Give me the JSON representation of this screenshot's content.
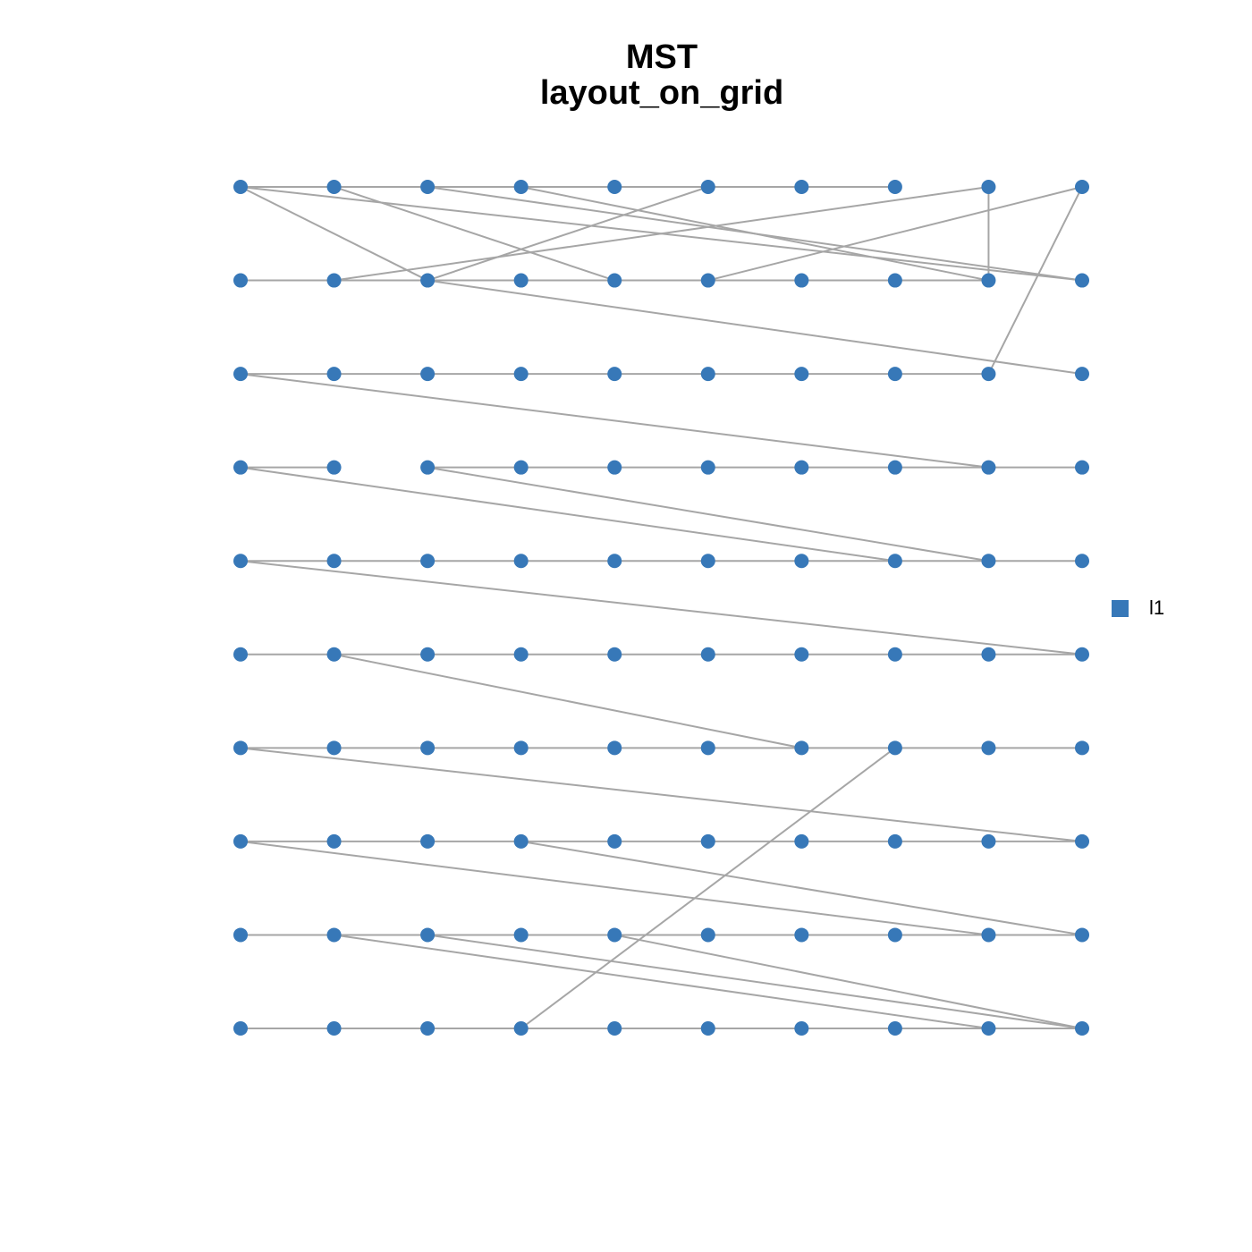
{
  "title": [
    "MST",
    "layout_on_grid"
  ],
  "legend": {
    "label": "l1",
    "color": "#3778b8"
  },
  "edge_color": "#a6a6a6",
  "grid": {
    "columns": 10,
    "rows": 10
  },
  "edges": [
    [
      0,
      1
    ],
    [
      1,
      2
    ],
    [
      2,
      3
    ],
    [
      3,
      4
    ],
    [
      4,
      5
    ],
    [
      5,
      6
    ],
    [
      6,
      7
    ],
    [
      10,
      11
    ],
    [
      11,
      12
    ],
    [
      12,
      13
    ],
    [
      13,
      14
    ],
    [
      14,
      15
    ],
    [
      15,
      16
    ],
    [
      16,
      17
    ],
    [
      17,
      18
    ],
    [
      20,
      21
    ],
    [
      21,
      22
    ],
    [
      22,
      23
    ],
    [
      23,
      24
    ],
    [
      24,
      25
    ],
    [
      25,
      26
    ],
    [
      26,
      27
    ],
    [
      27,
      28
    ],
    [
      30,
      31
    ],
    [
      32,
      33
    ],
    [
      33,
      34
    ],
    [
      34,
      35
    ],
    [
      35,
      36
    ],
    [
      36,
      37
    ],
    [
      37,
      38
    ],
    [
      38,
      39
    ],
    [
      40,
      41
    ],
    [
      41,
      42
    ],
    [
      42,
      43
    ],
    [
      43,
      44
    ],
    [
      44,
      45
    ],
    [
      45,
      46
    ],
    [
      46,
      47
    ],
    [
      47,
      48
    ],
    [
      48,
      49
    ],
    [
      50,
      51
    ],
    [
      51,
      52
    ],
    [
      52,
      53
    ],
    [
      53,
      54
    ],
    [
      54,
      55
    ],
    [
      55,
      56
    ],
    [
      56,
      57
    ],
    [
      57,
      58
    ],
    [
      58,
      59
    ],
    [
      60,
      61
    ],
    [
      61,
      62
    ],
    [
      62,
      63
    ],
    [
      63,
      64
    ],
    [
      64,
      65
    ],
    [
      65,
      66
    ],
    [
      66,
      67
    ],
    [
      67,
      68
    ],
    [
      68,
      69
    ],
    [
      70,
      71
    ],
    [
      71,
      72
    ],
    [
      72,
      73
    ],
    [
      73,
      74
    ],
    [
      74,
      75
    ],
    [
      75,
      76
    ],
    [
      76,
      77
    ],
    [
      77,
      78
    ],
    [
      78,
      79
    ],
    [
      80,
      81
    ],
    [
      81,
      82
    ],
    [
      82,
      83
    ],
    [
      83,
      84
    ],
    [
      84,
      85
    ],
    [
      85,
      86
    ],
    [
      86,
      87
    ],
    [
      87,
      88
    ],
    [
      88,
      89
    ],
    [
      90,
      91
    ],
    [
      91,
      92
    ],
    [
      92,
      93
    ],
    [
      93,
      94
    ],
    [
      94,
      95
    ],
    [
      95,
      96
    ],
    [
      96,
      97
    ],
    [
      97,
      98
    ],
    [
      98,
      99
    ],
    [
      0,
      12
    ],
    [
      0,
      19
    ],
    [
      1,
      14
    ],
    [
      2,
      19
    ],
    [
      3,
      18
    ],
    [
      5,
      12
    ],
    [
      11,
      8
    ],
    [
      15,
      9
    ],
    [
      8,
      18
    ],
    [
      9,
      28
    ],
    [
      12,
      29
    ],
    [
      20,
      38
    ],
    [
      30,
      47
    ],
    [
      32,
      48
    ],
    [
      40,
      59
    ],
    [
      51,
      66
    ],
    [
      60,
      79
    ],
    [
      67,
      93
    ],
    [
      70,
      88
    ],
    [
      73,
      89
    ],
    [
      81,
      98
    ],
    [
      82,
      99
    ],
    [
      84,
      99
    ]
  ]
}
